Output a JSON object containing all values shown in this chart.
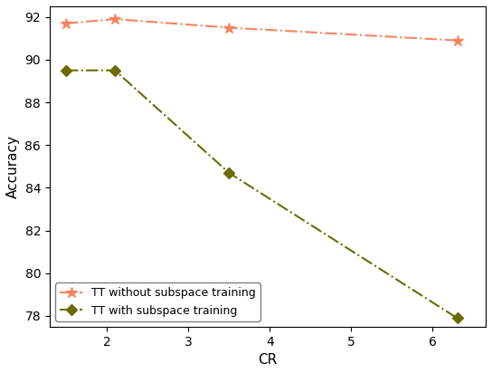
{
  "line1_x": [
    1.5,
    2.1,
    3.5,
    6.3
  ],
  "line1_y": [
    91.7,
    91.9,
    91.5,
    90.9
  ],
  "line2_x": [
    1.5,
    2.1,
    3.5,
    6.3
  ],
  "line2_y": [
    89.5,
    89.5,
    84.7,
    77.9
  ],
  "line1_label": "TT without subspace training",
  "line2_label": "TT with subspace training",
  "line1_color": "#F4845F",
  "line2_color": "#6B6B00",
  "xlabel": "CR",
  "ylabel": "Accuracy",
  "xlim": [
    1.3,
    6.65
  ],
  "ylim": [
    77.5,
    92.5
  ],
  "yticks": [
    78,
    80,
    82,
    84,
    86,
    88,
    90,
    92
  ],
  "xticks": [
    2,
    3,
    4,
    5,
    6
  ],
  "figsize": [
    5.44,
    4.12
  ],
  "dpi": 100
}
